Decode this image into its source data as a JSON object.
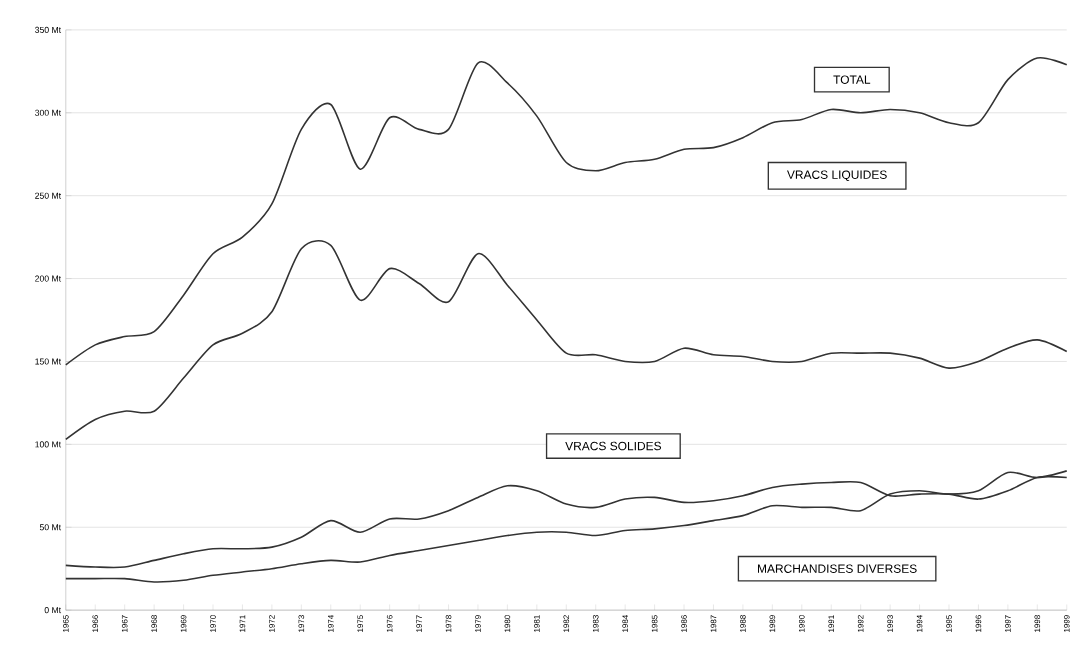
{
  "chart_data": {
    "type": "line",
    "categories": [
      "1965",
      "1966",
      "1967",
      "1968",
      "1969",
      "1970",
      "1971",
      "1972",
      "1973",
      "1974",
      "1975",
      "1976",
      "1977",
      "1978",
      "1979",
      "1980",
      "1981",
      "1982",
      "1983",
      "1984",
      "1985",
      "1986",
      "1987",
      "1988",
      "1989",
      "1990",
      "1991",
      "1992",
      "1993",
      "1994",
      "1995",
      "1996",
      "1997",
      "1998",
      "1999"
    ],
    "series": [
      {
        "name": "TOTAL",
        "color": "#333333",
        "values": [
          148,
          160,
          165,
          168,
          190,
          215,
          225,
          245,
          290,
          305,
          266,
          297,
          290,
          290,
          330,
          318,
          298,
          270,
          265,
          270,
          272,
          278,
          279,
          285,
          294,
          296,
          302,
          300,
          302,
          300,
          294,
          294,
          320,
          333,
          329
        ]
      },
      {
        "name": "VRACS LIQUIDES",
        "color": "#333333",
        "values": [
          103,
          115,
          120,
          120,
          140,
          160,
          167,
          180,
          218,
          220,
          187,
          206,
          197,
          186,
          215,
          196,
          175,
          155,
          154,
          150,
          150,
          158,
          154,
          153,
          150,
          150,
          155,
          155,
          155,
          152,
          146,
          150,
          158,
          163,
          156
        ]
      },
      {
        "name": "VRACS SOLIDES",
        "color": "#333333",
        "values": [
          27,
          26,
          26,
          30,
          34,
          37,
          37,
          38,
          44,
          54,
          47,
          55,
          55,
          60,
          68,
          75,
          72,
          64,
          62,
          67,
          68,
          65,
          66,
          69,
          74,
          76,
          77,
          77,
          69,
          70,
          70,
          67,
          72,
          80,
          80
        ]
      },
      {
        "name": "MARCHANDISES DIVERSES",
        "color": "#333333",
        "values": [
          19,
          19,
          19,
          17,
          18,
          21,
          23,
          25,
          28,
          30,
          29,
          33,
          36,
          39,
          42,
          45,
          47,
          47,
          45,
          48,
          49,
          51,
          54,
          57,
          63,
          62,
          62,
          60,
          70,
          72,
          70,
          72,
          83,
          80,
          84
        ]
      }
    ],
    "ylim": [
      0,
      350
    ],
    "yticks": [
      {
        "value": 0,
        "label": "0 Mt"
      },
      {
        "value": 50,
        "label": "50 Mt"
      },
      {
        "value": 100,
        "label": "100 Mt"
      },
      {
        "value": 150,
        "label": "150 Mt"
      },
      {
        "value": 200,
        "label": "200 Mt"
      },
      {
        "value": 250,
        "label": "250 Mt"
      },
      {
        "value": 300,
        "label": "300 Mt"
      },
      {
        "value": 350,
        "label": "350 Mt"
      }
    ],
    "grid": "y",
    "marker": "none",
    "line_style": "solid"
  }
}
